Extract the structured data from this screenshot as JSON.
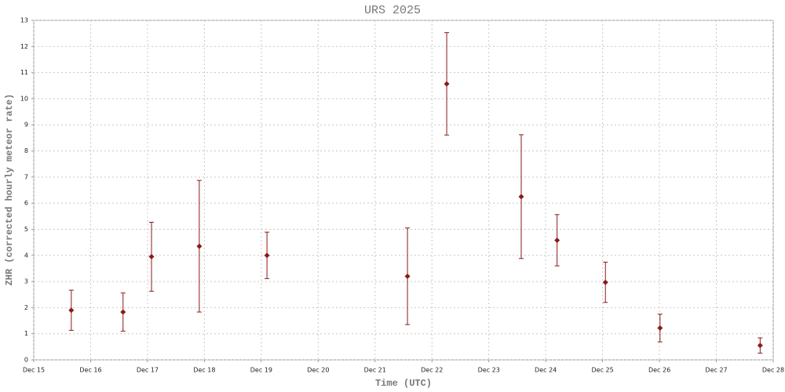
{
  "chart_data": {
    "type": "errorbar",
    "title": "URS 2025",
    "x_label": "Time (UTC)",
    "y_label": "ZHR (corrected hourly meteor rate)",
    "x": [
      15.66,
      16.57,
      17.07,
      17.91,
      19.1,
      21.57,
      22.26,
      23.57,
      24.2,
      25.05,
      26.01,
      27.77
    ],
    "series": [
      {
        "color": "#8b1a1a",
        "values": [
          1.9,
          1.83,
          3.95,
          4.35,
          4.0,
          3.2,
          10.57,
          6.25,
          4.58,
          2.97,
          1.22,
          0.55
        ],
        "errors": [
          0.77,
          0.73,
          1.32,
          2.52,
          0.89,
          1.85,
          1.96,
          2.37,
          0.98,
          0.77,
          0.53,
          0.29
        ]
      }
    ],
    "xlim": [
      15,
      28
    ],
    "xticks": [
      {
        "value": 15,
        "label": "Dec 15"
      },
      {
        "value": 16,
        "label": "Dec 16"
      },
      {
        "value": 17,
        "label": "Dec 17"
      },
      {
        "value": 18,
        "label": "Dec 18"
      },
      {
        "value": 19,
        "label": "Dec 19"
      },
      {
        "value": 20,
        "label": "Dec 20"
      },
      {
        "value": 21,
        "label": "Dec 21"
      },
      {
        "value": 22,
        "label": "Dec 22"
      },
      {
        "value": 23,
        "label": "Dec 23"
      },
      {
        "value": 24,
        "label": "Dec 24"
      },
      {
        "value": 25,
        "label": "Dec 25"
      },
      {
        "value": 26,
        "label": "Dec 26"
      },
      {
        "value": 27,
        "label": "Dec 27"
      },
      {
        "value": 28,
        "label": "Dec 28"
      }
    ],
    "ylim": [
      0,
      13
    ],
    "yticks": [
      0,
      1,
      2,
      3,
      4,
      5,
      6,
      7,
      8,
      9,
      10,
      11,
      12,
      13
    ],
    "grid": true
  }
}
